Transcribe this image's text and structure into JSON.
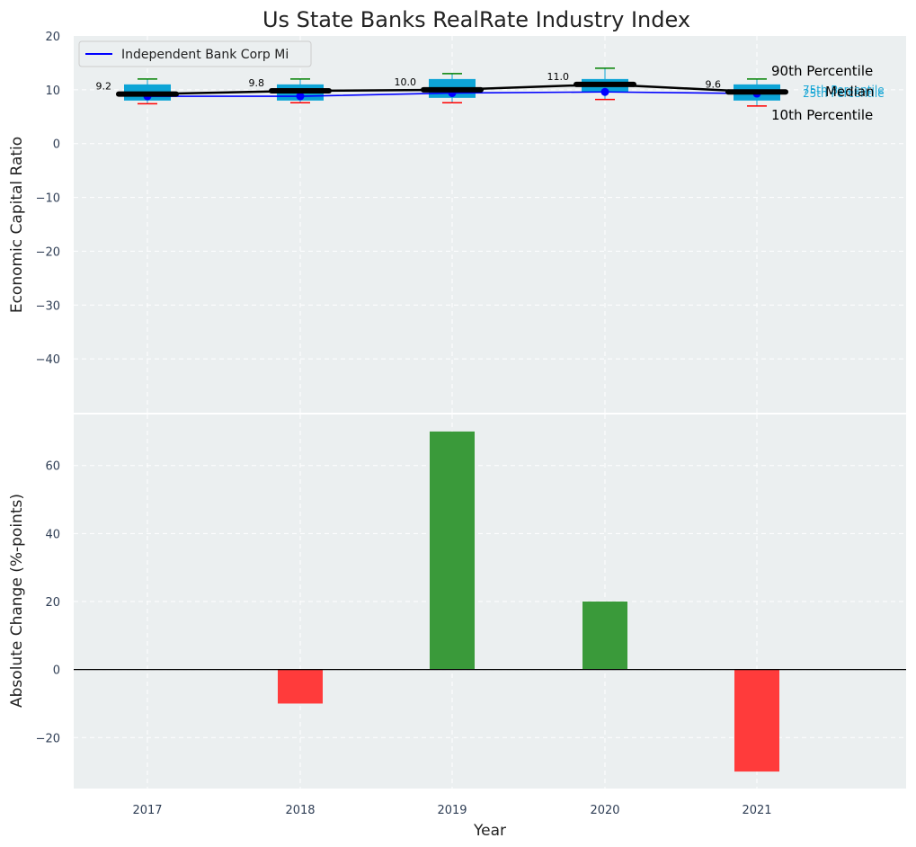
{
  "chart_data": [
    {
      "type": "box",
      "title": "Us State Banks RealRate Industry Index",
      "ylabel": "Economic Capital Ratio",
      "ylim": [
        -50,
        20
      ],
      "yticks": [
        20,
        10,
        0,
        -10,
        -20,
        -30,
        -40
      ],
      "grid": true,
      "legend": {
        "placement": "top-left",
        "entries": [
          "Independent Bank Corp Mi"
        ]
      },
      "categories": [
        "2017",
        "2018",
        "2019",
        "2020",
        "2021"
      ],
      "percentiles": {
        "p90": [
          12,
          12,
          13,
          14,
          12
        ],
        "p75": [
          11,
          11,
          12,
          12,
          11
        ],
        "p25": [
          8,
          8,
          8.5,
          9.5,
          8
        ],
        "p10": [
          7.4,
          7.6,
          7.6,
          8.2,
          7
        ]
      },
      "median": [
        9.2,
        9.8,
        10.0,
        11.0,
        9.6
      ],
      "median_labels": [
        "9.2",
        "9.8",
        "10.0",
        "11.0",
        "9.6"
      ],
      "series": [
        {
          "name": "Independent Bank Corp Mi",
          "values": [
            8.8,
            8.8,
            9.4,
            9.6,
            9.3
          ],
          "color": "#0000ff"
        }
      ],
      "percentile_labels": {
        "p90": "90th Percentile",
        "p75": "75th Percentile",
        "median": "Median",
        "p25": "25th Percentile",
        "p10": "10th Percentile"
      },
      "colors": {
        "box": "#0da4d6",
        "p90_whisker": "#008000",
        "p10_whisker": "#ff0000",
        "median_line": "#000000",
        "background": "#ebeff0"
      }
    },
    {
      "type": "bar",
      "ylabel": "Absolute Change (%-points)",
      "xlabel": "Year",
      "ylim": [
        -35,
        75
      ],
      "yticks": [
        60,
        40,
        20,
        0,
        -20
      ],
      "grid": true,
      "categories": [
        "2017",
        "2018",
        "2019",
        "2020",
        "2021"
      ],
      "values": [
        0,
        -10,
        70,
        20,
        -30
      ],
      "colors": {
        "positive": "#3a9a3a",
        "negative": "#ff3b3b"
      }
    }
  ]
}
